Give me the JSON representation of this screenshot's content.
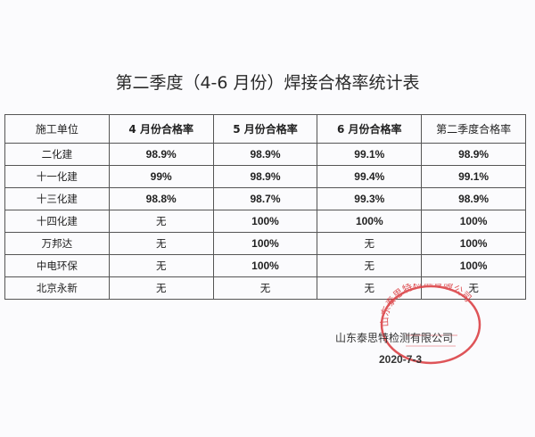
{
  "title": "第二季度（4-6 月份）焊接合格率统计表",
  "table": {
    "headers": [
      "施工单位",
      "4 月份合格率",
      "5 月份合格率",
      "6 月份合格率",
      "第二季度合格率"
    ],
    "rows": [
      [
        "二化建",
        "98.9%",
        "98.9%",
        "99.1%",
        "98.9%"
      ],
      [
        "十一化建",
        "99%",
        "98.9%",
        "99.4%",
        "99.1%"
      ],
      [
        "十三化建",
        "98.8%",
        "98.7%",
        "99.3%",
        "98.9%"
      ],
      [
        "十四化建",
        "无",
        "100%",
        "100%",
        "100%"
      ],
      [
        "万邦达",
        "无",
        "100%",
        "无",
        "100%"
      ],
      [
        "中电环保",
        "无",
        "100%",
        "无",
        "100%"
      ],
      [
        "北京永新",
        "无",
        "无",
        "无",
        "无"
      ]
    ]
  },
  "footer": {
    "company": "山东泰思特检测有限公司",
    "date": "2020-7-3"
  },
  "stamp": {
    "text": "山东泰思特检测有限公司",
    "color": "#d9383c"
  }
}
